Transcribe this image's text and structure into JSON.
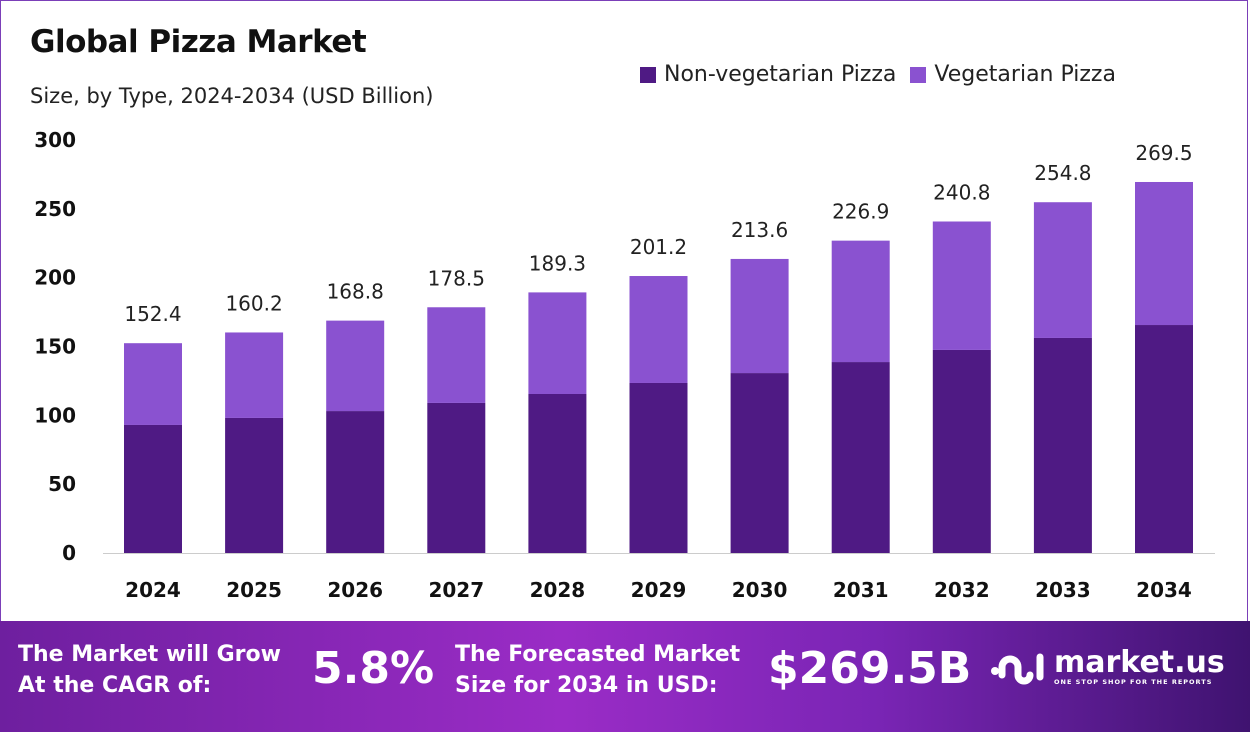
{
  "chart_data": {
    "type": "bar",
    "stacked": true,
    "title": "Global Pizza Market",
    "subtitle": "Size, by Type, 2024-2034 (USD Billion)",
    "categories": [
      "2024",
      "2025",
      "2026",
      "2027",
      "2028",
      "2029",
      "2030",
      "2031",
      "2032",
      "2033",
      "2034"
    ],
    "series": [
      {
        "name": "Non-vegetarian Pizza",
        "color": "#4f1a84",
        "values": [
          93.0,
          98.1,
          103.1,
          109.0,
          115.5,
          123.5,
          130.7,
          138.7,
          147.5,
          156.2,
          165.6
        ]
      },
      {
        "name": "Vegetarian Pizza",
        "color": "#8a52d0",
        "values": [
          59.4,
          62.1,
          65.7,
          69.5,
          73.8,
          77.7,
          82.9,
          88.2,
          93.3,
          98.6,
          103.9
        ]
      }
    ],
    "totals": [
      "152.4",
      "160.2",
      "168.8",
      "178.5",
      "189.3",
      "201.2",
      "213.6",
      "226.9",
      "240.8",
      "254.8",
      "269.5"
    ],
    "yticks": [
      "0",
      "50",
      "100",
      "150",
      "200",
      "250",
      "300"
    ],
    "ylim": [
      0,
      300
    ],
    "grid": false,
    "legend": "top-right"
  },
  "footer": {
    "cagr_label_1": "The Market will Grow",
    "cagr_label_2": "At the CAGR of:",
    "cagr_value": "5.8%",
    "forecast_label_1": "The Forecasted Market",
    "forecast_label_2": "Size for 2034 in USD:",
    "forecast_value": "$269.5B",
    "logo_name": "market.us",
    "logo_tagline": "ONE STOP SHOP FOR THE REPORTS"
  }
}
